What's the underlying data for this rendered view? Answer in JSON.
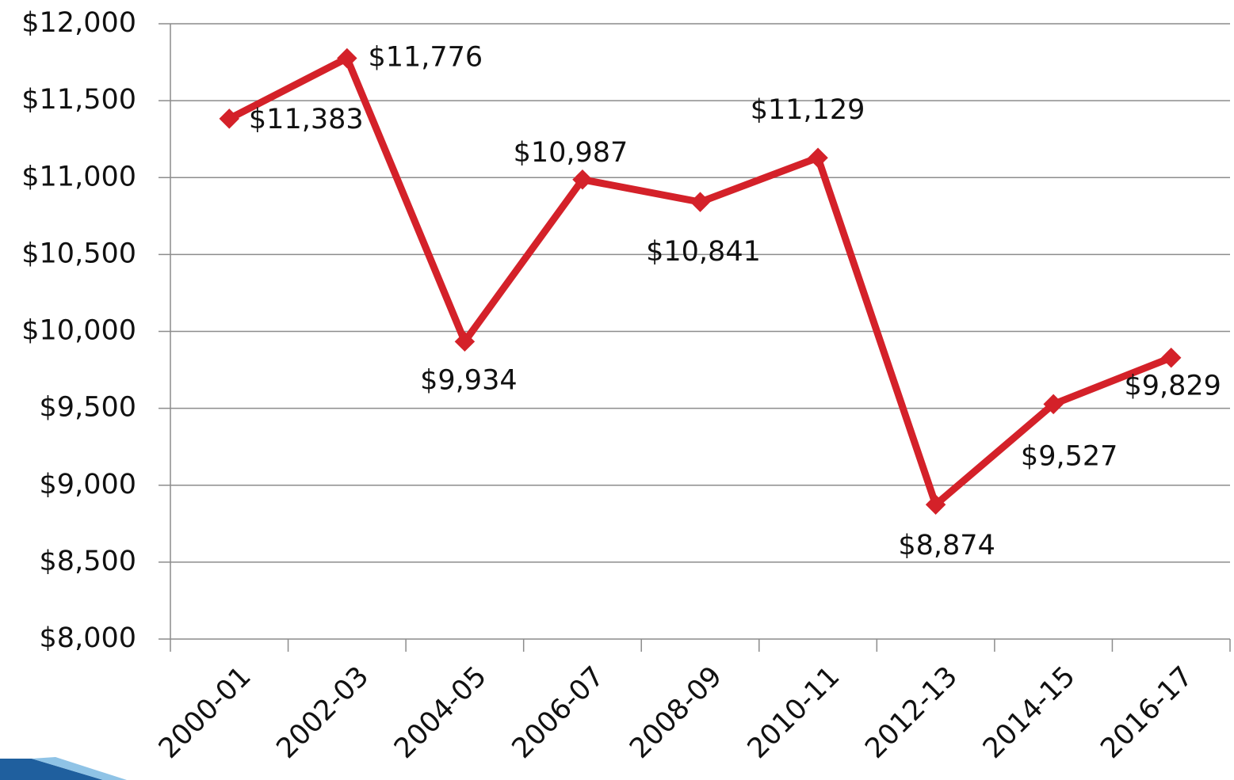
{
  "chart_data": {
    "type": "line",
    "categories": [
      "2000-01",
      "2002-03",
      "2004-05",
      "2006-07",
      "2008-09",
      "2010-11",
      "2012-13",
      "2014-15",
      "2016-17"
    ],
    "series": [
      {
        "color": "#d42129",
        "values": [
          11383,
          11776,
          9934,
          10987,
          10841,
          11129,
          8874,
          9527,
          9829
        ],
        "value_labels": [
          "$11,383",
          "$11,776",
          "$9,934",
          "$10,987",
          "$10,841",
          "$11,129",
          "$8,874",
          "$9,527",
          "$9,829"
        ]
      }
    ],
    "ylim": [
      8000,
      12000
    ],
    "yticks": [
      {
        "value": 8000,
        "label": "$8,000"
      },
      {
        "value": 8500,
        "label": "$8,500"
      },
      {
        "value": 9000,
        "label": "$9,000"
      },
      {
        "value": 9500,
        "label": "$9,500"
      },
      {
        "value": 10000,
        "label": "$10,000"
      },
      {
        "value": 10500,
        "label": "$10,500"
      },
      {
        "value": 11000,
        "label": "$11,000"
      },
      {
        "value": 11500,
        "label": "$11,500"
      },
      {
        "value": 12000,
        "label": "$12,000"
      }
    ],
    "grid": true
  }
}
